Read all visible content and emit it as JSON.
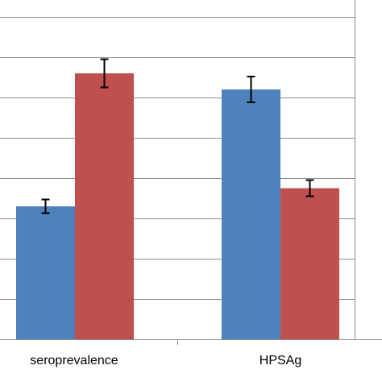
{
  "chart_data": {
    "type": "bar",
    "categories": [
      "seroprevalence",
      "HPSAg"
    ],
    "series": [
      {
        "color": "#4f81bd",
        "values": [
          33,
          62
        ],
        "error": [
          1.7,
          3.2
        ]
      },
      {
        "color": "#c0504d",
        "values": [
          66,
          37.5
        ],
        "error": [
          3.5,
          2.0
        ]
      }
    ],
    "ylim": [
      0,
      84
    ],
    "grid_step": 10,
    "grid": true,
    "title": "",
    "xlabel": "",
    "ylabel": ""
  }
}
